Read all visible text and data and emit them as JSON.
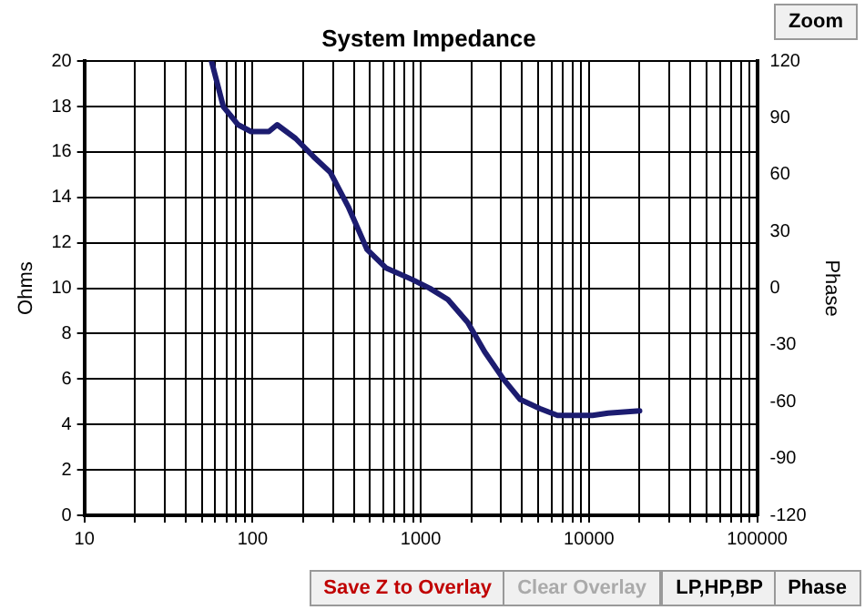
{
  "chart_data": {
    "type": "line",
    "title": "System Impedance",
    "ylabel": "Ohms",
    "y2label": "Phase",
    "x": [
      57,
      67,
      82,
      98,
      125,
      140,
      180,
      230,
      290,
      370,
      480,
      620,
      880,
      1130,
      1450,
      1900,
      2400,
      3100,
      3900,
      5100,
      6500,
      8200,
      10500,
      13000,
      20000
    ],
    "series": [
      {
        "color": "#1c1c70",
        "values": [
          20,
          18,
          17.2,
          16.9,
          16.9,
          17.2,
          16.6,
          15.8,
          15.1,
          13.6,
          11.7,
          10.9,
          10.4,
          10.0,
          9.5,
          8.5,
          7.2,
          6.0,
          5.1,
          4.7,
          4.4,
          4.4,
          4.4,
          4.5,
          4.6
        ]
      }
    ],
    "log": "x",
    "xlim": [
      10,
      100000
    ],
    "xticks": [
      10,
      {
        "value": 20,
        "label": null
      },
      {
        "value": 30,
        "label": null
      },
      {
        "value": 40,
        "label": null
      },
      {
        "value": 50,
        "label": null
      },
      {
        "value": 60,
        "label": null
      },
      {
        "value": 70,
        "label": null
      },
      {
        "value": 80,
        "label": null
      },
      {
        "value": 90,
        "label": null
      },
      100,
      {
        "value": 200,
        "label": null
      },
      {
        "value": 300,
        "label": null
      },
      {
        "value": 400,
        "label": null
      },
      {
        "value": 500,
        "label": null
      },
      {
        "value": 600,
        "label": null
      },
      {
        "value": 700,
        "label": null
      },
      {
        "value": 800,
        "label": null
      },
      {
        "value": 900,
        "label": null
      },
      1000,
      {
        "value": 2000,
        "label": null
      },
      {
        "value": 3000,
        "label": null
      },
      {
        "value": 4000,
        "label": null
      },
      {
        "value": 5000,
        "label": null
      },
      {
        "value": 6000,
        "label": null
      },
      {
        "value": 7000,
        "label": null
      },
      {
        "value": 8000,
        "label": null
      },
      {
        "value": 9000,
        "label": null
      },
      10000,
      {
        "value": 20000,
        "label": null
      },
      {
        "value": 30000,
        "label": null
      },
      {
        "value": 40000,
        "label": null
      },
      {
        "value": 50000,
        "label": null
      },
      {
        "value": 60000,
        "label": null
      },
      {
        "value": 70000,
        "label": null
      },
      {
        "value": 80000,
        "label": null
      },
      {
        "value": 90000,
        "label": null
      },
      100000
    ],
    "ylim": [
      0,
      20
    ],
    "yticks": [
      0,
      2,
      4,
      6,
      8,
      10,
      12,
      14,
      16,
      18,
      20
    ],
    "y2lim": [
      -120,
      120
    ],
    "y2ticks": [
      -120,
      -90,
      -60,
      -30,
      0,
      30,
      60,
      90,
      120
    ],
    "grid": true,
    "legend": false,
    "marker": "none",
    "line_style": "solid",
    "annotations": [
      "Zoom",
      "Save Z to Overlay",
      "Clear Overlay",
      "LP,HP,BP",
      "Phase"
    ]
  }
}
